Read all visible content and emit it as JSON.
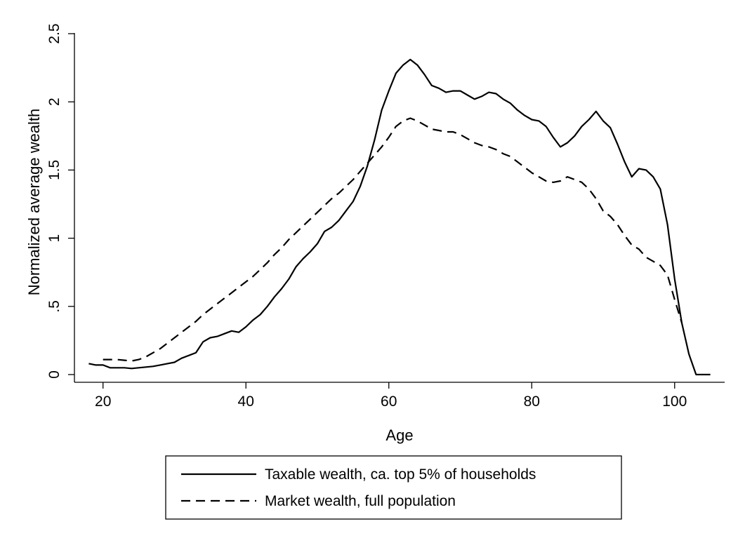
{
  "chart_data": {
    "type": "line",
    "xlabel": "Age",
    "ylabel": "Normalized average wealth",
    "xlim": [
      16,
      107
    ],
    "ylim": [
      0,
      2.5
    ],
    "xticks": [
      20,
      40,
      60,
      80,
      100
    ],
    "xtick_labels": [
      "20",
      "40",
      "60",
      "80",
      "100"
    ],
    "yticks": [
      0,
      0.5,
      1,
      1.5,
      2,
      2.5
    ],
    "ytick_labels": [
      "0",
      ".5",
      "1",
      "1.5",
      "2",
      "2.5"
    ],
    "grid": false,
    "legend_position": "bottom",
    "series": [
      {
        "name": "Taxable wealth, ca. top 5% of households",
        "style": "solid",
        "color": "#000000",
        "x": [
          18,
          19,
          20,
          21,
          22,
          23,
          24,
          25,
          26,
          27,
          28,
          29,
          30,
          31,
          32,
          33,
          34,
          35,
          36,
          37,
          38,
          39,
          40,
          41,
          42,
          43,
          44,
          45,
          46,
          47,
          48,
          49,
          50,
          51,
          52,
          53,
          54,
          55,
          56,
          57,
          58,
          59,
          60,
          61,
          62,
          63,
          64,
          65,
          66,
          67,
          68,
          69,
          70,
          71,
          72,
          73,
          74,
          75,
          76,
          77,
          78,
          79,
          80,
          81,
          82,
          83,
          84,
          85,
          86,
          87,
          88,
          89,
          90,
          91,
          92,
          93,
          94,
          95,
          96,
          97,
          98,
          99,
          100,
          101,
          102,
          103,
          104,
          105
        ],
        "y": [
          0.08,
          0.07,
          0.07,
          0.05,
          0.05,
          0.05,
          0.045,
          0.05,
          0.055,
          0.06,
          0.07,
          0.08,
          0.09,
          0.12,
          0.14,
          0.16,
          0.24,
          0.27,
          0.28,
          0.3,
          0.32,
          0.31,
          0.35,
          0.4,
          0.44,
          0.5,
          0.57,
          0.63,
          0.7,
          0.79,
          0.85,
          0.9,
          0.96,
          1.05,
          1.08,
          1.13,
          1.2,
          1.27,
          1.38,
          1.53,
          1.72,
          1.94,
          2.08,
          2.21,
          2.27,
          2.31,
          2.27,
          2.2,
          2.12,
          2.1,
          2.07,
          2.08,
          2.08,
          2.05,
          2.02,
          2.04,
          2.07,
          2.06,
          2.02,
          1.99,
          1.94,
          1.9,
          1.87,
          1.86,
          1.82,
          1.74,
          1.67,
          1.7,
          1.75,
          1.82,
          1.87,
          1.93,
          1.86,
          1.81,
          1.69,
          1.56,
          1.45,
          1.51,
          1.5,
          1.45,
          1.36,
          1.1,
          0.7,
          0.38,
          0.15,
          0.0,
          0.0,
          0.0
        ]
      },
      {
        "name": "Market wealth, full population",
        "style": "dashed",
        "color": "#000000",
        "x": [
          20,
          21,
          22,
          23,
          24,
          25,
          26,
          27,
          28,
          29,
          30,
          31,
          32,
          33,
          34,
          35,
          36,
          37,
          38,
          39,
          40,
          41,
          42,
          43,
          44,
          45,
          46,
          47,
          48,
          49,
          50,
          51,
          52,
          53,
          54,
          55,
          56,
          57,
          58,
          59,
          60,
          61,
          62,
          63,
          64,
          65,
          66,
          67,
          68,
          69,
          70,
          71,
          72,
          73,
          74,
          75,
          76,
          77,
          78,
          79,
          80,
          81,
          82,
          83,
          84,
          85,
          86,
          87,
          88,
          89,
          90,
          91,
          92,
          93,
          94,
          95,
          96,
          97,
          98,
          99,
          100,
          101
        ],
        "y": [
          0.11,
          0.11,
          0.11,
          0.105,
          0.1,
          0.11,
          0.13,
          0.16,
          0.19,
          0.23,
          0.27,
          0.31,
          0.35,
          0.39,
          0.44,
          0.48,
          0.52,
          0.56,
          0.6,
          0.64,
          0.68,
          0.72,
          0.77,
          0.82,
          0.88,
          0.93,
          0.99,
          1.04,
          1.09,
          1.14,
          1.19,
          1.24,
          1.29,
          1.33,
          1.38,
          1.43,
          1.49,
          1.55,
          1.61,
          1.67,
          1.74,
          1.82,
          1.86,
          1.88,
          1.86,
          1.83,
          1.8,
          1.79,
          1.78,
          1.78,
          1.76,
          1.73,
          1.7,
          1.68,
          1.67,
          1.65,
          1.62,
          1.6,
          1.56,
          1.52,
          1.48,
          1.45,
          1.42,
          1.41,
          1.42,
          1.45,
          1.43,
          1.41,
          1.36,
          1.29,
          1.2,
          1.16,
          1.1,
          1.02,
          0.95,
          0.92,
          0.86,
          0.83,
          0.8,
          0.73,
          0.55,
          0.38
        ]
      }
    ]
  }
}
